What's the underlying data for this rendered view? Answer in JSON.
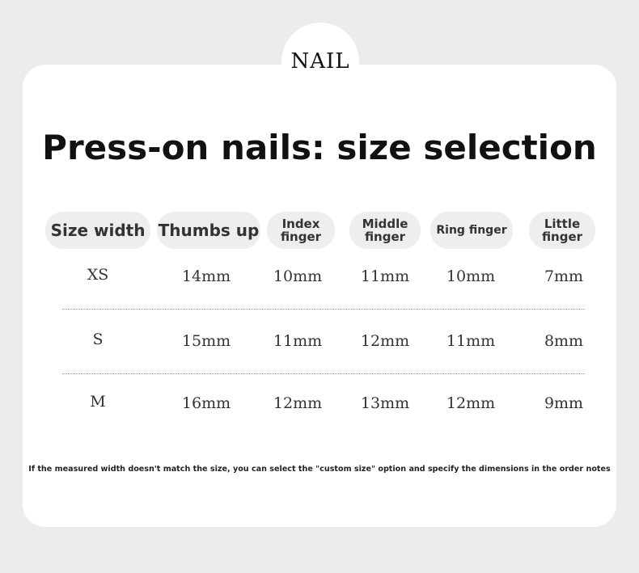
{
  "badge": "NAIL",
  "title": "Press-on nails: size selection",
  "headers": [
    "Size width",
    "Thumbs up",
    "Index finger",
    "Middle finger",
    "Ring finger",
    "Little finger"
  ],
  "rows": [
    {
      "size": "XS",
      "values": [
        "14mm",
        "10mm",
        "11mm",
        "10mm",
        "7mm"
      ]
    },
    {
      "size": "S",
      "values": [
        "15mm",
        "11mm",
        "12mm",
        "11mm",
        "8mm"
      ]
    },
    {
      "size": "M",
      "values": [
        "16mm",
        "12mm",
        "13mm",
        "12mm",
        "9mm"
      ]
    }
  ],
  "note": "If the measured width doesn't match the size, you can select the \"custom size\" option and specify the dimensions in the order notes"
}
